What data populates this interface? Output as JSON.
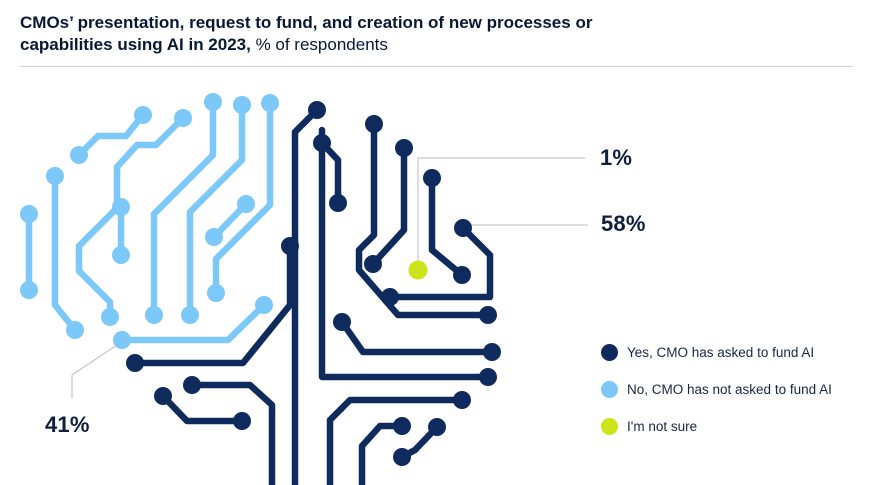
{
  "title": {
    "bold": "CMOs’ presentation, request to fund, and creation of new processes or capabilities using AI in 2023,",
    "regular": " % of respondents"
  },
  "colors": {
    "yes": "#0f2a5c",
    "no": "#7cc8f8",
    "not_sure": "#cde418",
    "leader": "#c4c8ce"
  },
  "chart_data": {
    "type": "pie",
    "title": "CMOs’ presentation, request to fund, and creation of new processes or capabilities using AI in 2023",
    "unit": "% of respondents",
    "categories": [
      "Yes, CMO has asked to fund AI",
      "No, CMO has not asked to fund AI",
      "I'm not sure"
    ],
    "values": [
      58,
      41,
      1
    ],
    "labels": [
      "58%",
      "41%",
      "1%"
    ]
  },
  "legend": [
    {
      "label": "Yes, CMO has asked to fund AI",
      "color": "#0f2a5c"
    },
    {
      "label": "No, CMO has not asked to fund AI",
      "color": "#7cc8f8"
    },
    {
      "label": "I'm not sure",
      "color": "#cde418"
    }
  ]
}
